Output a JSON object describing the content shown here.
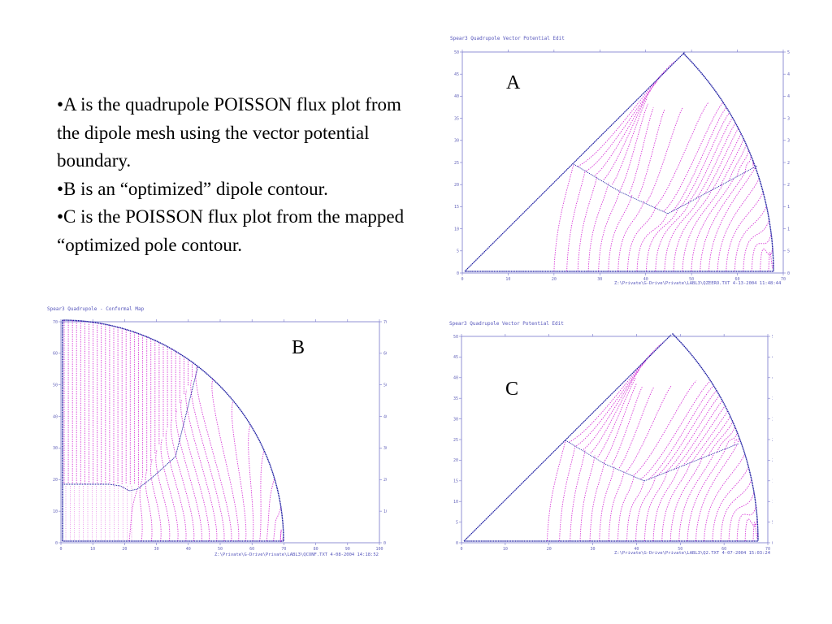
{
  "bullets": [
    "•A is the quadrupole POISSON flux plot from the dipole mesh using the vector potential boundary.",
    "•B is an “optimized” dipole contour.",
    "•C is the POISSON flux plot from the mapped “optimized pole contour."
  ],
  "labels": {
    "A": "A",
    "B": "B",
    "C": "C"
  },
  "colors": {
    "frame": "#7777cc",
    "boundary": "#1a1aa0",
    "flux": "#d633d6",
    "tick_text": "#6666bb"
  },
  "panels": {
    "A": {
      "title": "Spear3 Quadrupole  Vector Potential Edit",
      "footer": "Z:\\Private\\G-Drive\\Private\\LABL3\\QZEERO.TXT  4-13-2004  11:48:44",
      "xticks": [
        "0",
        "10",
        "20",
        "30",
        "40",
        "50",
        "60",
        "70"
      ],
      "yticks": [
        "0",
        "5",
        "10",
        "15",
        "20",
        "25",
        "30",
        "35",
        "40",
        "45",
        "50"
      ]
    },
    "B": {
      "title": "Spear3 Quadrupole  - Conformal Map",
      "footer": "Z:\\Private\\G-Drive\\Private\\LABL3\\QCONF.TXT  4-08-2004  14:18:52",
      "xticks": [
        "0",
        "10",
        "20",
        "30",
        "40",
        "50",
        "60",
        "70",
        "80",
        "90",
        "100"
      ],
      "yticks": [
        "0",
        "10",
        "20",
        "30",
        "40",
        "50",
        "60",
        "70"
      ]
    },
    "C": {
      "title": "Spear3 Quadrupole  Vector Potential Edit",
      "footer": "Z:\\Private\\G-Drive\\Private\\LABL3\\Q2.TXT  4-07-2004  15:03:24",
      "xticks": [
        "0",
        "10",
        "20",
        "30",
        "40",
        "50",
        "60",
        "70"
      ],
      "yticks": [
        "0",
        "5",
        "10",
        "15",
        "20",
        "25",
        "30",
        "35",
        "40",
        "45",
        "50"
      ]
    }
  }
}
